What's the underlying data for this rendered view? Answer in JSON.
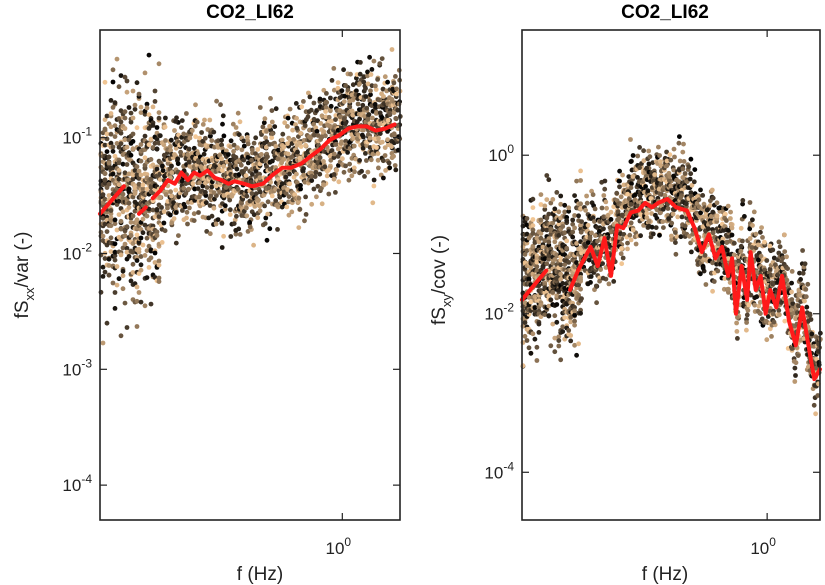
{
  "chart_data": [
    {
      "type": "scatter",
      "title": "CO2_LI62",
      "xlabel": "f (Hz)",
      "ylabel": {
        "main": "fS",
        "sub": "xx",
        "rest": "/var (-)"
      },
      "xscale": "log",
      "yscale": "log",
      "xlim": [
        0.21,
        1.45
      ],
      "ylim": [
        5e-05,
        0.85
      ],
      "x_ticks": [
        {
          "value": 1,
          "base": "10",
          "exp": "0"
        }
      ],
      "y_ticks": [
        {
          "value": 0.0001,
          "base": "10",
          "exp": "-4"
        },
        {
          "value": 0.001,
          "base": "10",
          "exp": "-3"
        },
        {
          "value": 0.01,
          "base": "10",
          "exp": "-2"
        },
        {
          "value": 0.1,
          "base": "10",
          "exp": "-1"
        }
      ],
      "scatter_color_range": [
        "#000000",
        "#f4c896"
      ],
      "scatter_note": "many overlapping points, color shading from black to light orange",
      "series": [
        {
          "color": "#ff1a1a",
          "x": [
            0.21,
            0.245,
            0.255,
            0.27,
            0.282,
            0.295,
            0.31,
            0.325,
            0.34,
            0.355,
            0.37,
            0.385,
            0.4,
            0.42,
            0.44,
            0.46,
            0.48,
            0.5,
            0.53,
            0.56,
            0.6,
            0.64,
            0.68,
            0.72,
            0.77,
            0.82,
            0.87,
            0.92,
            0.98,
            1.04,
            1.1,
            1.17,
            1.24,
            1.32,
            1.4
          ],
          "y": [
            0.022,
            0.038,
            0.026,
            0.022,
            0.025,
            0.03,
            0.035,
            0.043,
            0.04,
            0.05,
            0.043,
            0.05,
            0.047,
            0.052,
            0.045,
            0.043,
            0.04,
            0.042,
            0.04,
            0.038,
            0.04,
            0.048,
            0.055,
            0.055,
            0.06,
            0.07,
            0.08,
            0.095,
            0.105,
            0.12,
            0.125,
            0.125,
            0.115,
            0.12,
            0.13
          ],
          "breaks_after": [
            1,
            2,
            4
          ]
        }
      ]
    },
    {
      "type": "scatter",
      "title": "CO2_LI62",
      "xlabel": "f (Hz)",
      "ylabel": {
        "main": "fS",
        "sub": "xy",
        "rest": "/cov (-)"
      },
      "xscale": "log",
      "yscale": "log",
      "xlim": [
        0.21,
        1.4
      ],
      "ylim": [
        2.5e-05,
        38
      ],
      "x_ticks": [
        {
          "value": 1,
          "base": "10",
          "exp": "0"
        }
      ],
      "y_ticks": [
        {
          "value": 0.0001,
          "base": "10",
          "exp": "-4"
        },
        {
          "value": 0.01,
          "base": "10",
          "exp": "-2"
        },
        {
          "value": 1,
          "base": "10",
          "exp": "0"
        }
      ],
      "scatter_color_range": [
        "#000000",
        "#f4c896"
      ],
      "scatter_note": "many overlapping points, color shading from black to light orange",
      "series": [
        {
          "color": "#ff1a1a",
          "x": [
            0.21,
            0.245,
            0.285,
            0.3,
            0.325,
            0.34,
            0.355,
            0.37,
            0.385,
            0.4,
            0.42,
            0.44,
            0.46,
            0.48,
            0.5,
            0.53,
            0.56,
            0.6,
            0.63,
            0.66,
            0.69,
            0.72,
            0.75,
            0.78,
            0.8,
            0.82,
            0.85,
            0.88,
            0.9,
            0.93,
            0.96,
            0.99,
            1.02,
            1.06,
            1.1,
            1.15,
            1.2,
            1.25,
            1.3,
            1.35,
            1.4
          ],
          "y": [
            0.015,
            0.035,
            0.02,
            0.035,
            0.07,
            0.04,
            0.09,
            0.03,
            0.13,
            0.12,
            0.19,
            0.2,
            0.25,
            0.22,
            0.25,
            0.28,
            0.22,
            0.2,
            0.12,
            0.06,
            0.1,
            0.05,
            0.07,
            0.03,
            0.05,
            0.01,
            0.04,
            0.015,
            0.06,
            0.02,
            0.03,
            0.01,
            0.02,
            0.012,
            0.03,
            0.008,
            0.004,
            0.012,
            0.004,
            0.0015,
            0.002
          ],
          "breaks_after": [
            1
          ]
        }
      ]
    }
  ]
}
